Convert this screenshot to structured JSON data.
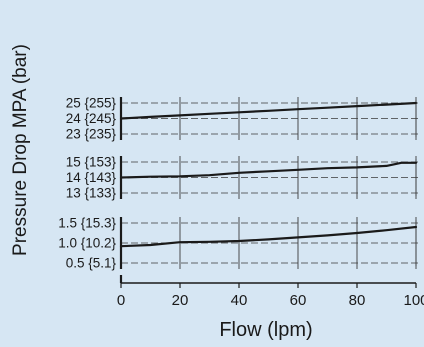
{
  "colors": {
    "background": "#d6e6f3",
    "ink": "#1a1a1a",
    "grid": "#3a3a3a"
  },
  "chart_data": {
    "type": "line",
    "ylabel": "Pressure Drop MPA (bar)",
    "xlabel": "Flow (lpm)",
    "xlim": [
      0,
      100
    ],
    "x_ticks": [
      "0",
      "20",
      "40",
      "60",
      "80",
      "100"
    ],
    "grid": true,
    "panels": [
      {
        "ylim": [
          23,
          25
        ],
        "y_tick_values": [
          25,
          24,
          23
        ],
        "y_tick_labels": [
          "25  {255}",
          "24  {245}",
          "23  {235}"
        ],
        "x": [
          0,
          10,
          20,
          30,
          40,
          50,
          60,
          70,
          80,
          90,
          100
        ],
        "values": [
          24.0,
          24.1,
          24.2,
          24.3,
          24.4,
          24.5,
          24.6,
          24.7,
          24.8,
          24.9,
          25.0
        ]
      },
      {
        "ylim": [
          13,
          15
        ],
        "y_tick_values": [
          15,
          14,
          13
        ],
        "y_tick_labels": [
          "15  {153}",
          "14  {143}",
          "13  {133}"
        ],
        "x": [
          0,
          10,
          20,
          30,
          40,
          50,
          60,
          70,
          80,
          90,
          95,
          100
        ],
        "values": [
          14.0,
          14.05,
          14.08,
          14.15,
          14.3,
          14.4,
          14.5,
          14.6,
          14.65,
          14.75,
          14.95,
          14.95
        ]
      },
      {
        "ylim": [
          0.5,
          1.5
        ],
        "y_tick_values": [
          1.5,
          1.0,
          0.5
        ],
        "y_tick_labels": [
          "1.5 {15.3}",
          "1.0 {10.2}",
          "0.5   {5.1}"
        ],
        "x": [
          0,
          10,
          20,
          30,
          40,
          50,
          60,
          70,
          80,
          90,
          100
        ],
        "values": [
          0.92,
          0.95,
          1.02,
          1.03,
          1.05,
          1.09,
          1.14,
          1.19,
          1.25,
          1.32,
          1.4
        ]
      }
    ]
  }
}
